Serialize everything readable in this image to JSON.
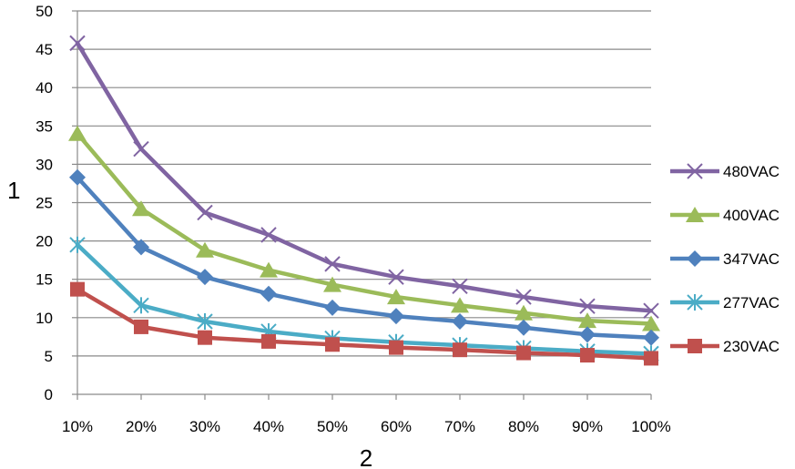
{
  "chart_data": {
    "type": "line",
    "title": "",
    "xlabel": "2",
    "ylabel": "1",
    "categories": [
      "10%",
      "20%",
      "30%",
      "40%",
      "50%",
      "60%",
      "70%",
      "80%",
      "90%",
      "100%"
    ],
    "ylim": [
      0,
      50
    ],
    "yticks": [
      0,
      5,
      10,
      15,
      20,
      25,
      30,
      35,
      40,
      45,
      50
    ],
    "grid": true,
    "legend_position": "right",
    "series": [
      {
        "name": "480VAC",
        "color": "#8064a2",
        "marker": "x",
        "values": [
          45.8,
          32.0,
          23.7,
          20.8,
          17.0,
          15.3,
          14.1,
          12.7,
          11.5,
          10.9
        ]
      },
      {
        "name": "400VAC",
        "color": "#9bbb59",
        "marker": "triangle",
        "values": [
          34.0,
          24.2,
          18.8,
          16.2,
          14.3,
          12.7,
          11.6,
          10.6,
          9.6,
          9.2
        ]
      },
      {
        "name": "347VAC",
        "color": "#4f81bd",
        "marker": "diamond",
        "values": [
          28.3,
          19.2,
          15.3,
          13.1,
          11.3,
          10.2,
          9.5,
          8.7,
          7.8,
          7.4
        ]
      },
      {
        "name": "277VAC",
        "color": "#4bacc6",
        "marker": "asterisk",
        "values": [
          19.5,
          11.6,
          9.5,
          8.2,
          7.3,
          6.8,
          6.4,
          6.0,
          5.6,
          5.3
        ]
      },
      {
        "name": "230VAC",
        "color": "#c0504d",
        "marker": "square",
        "values": [
          13.7,
          8.8,
          7.4,
          6.9,
          6.5,
          6.1,
          5.8,
          5.4,
          5.1,
          4.7
        ]
      }
    ]
  }
}
